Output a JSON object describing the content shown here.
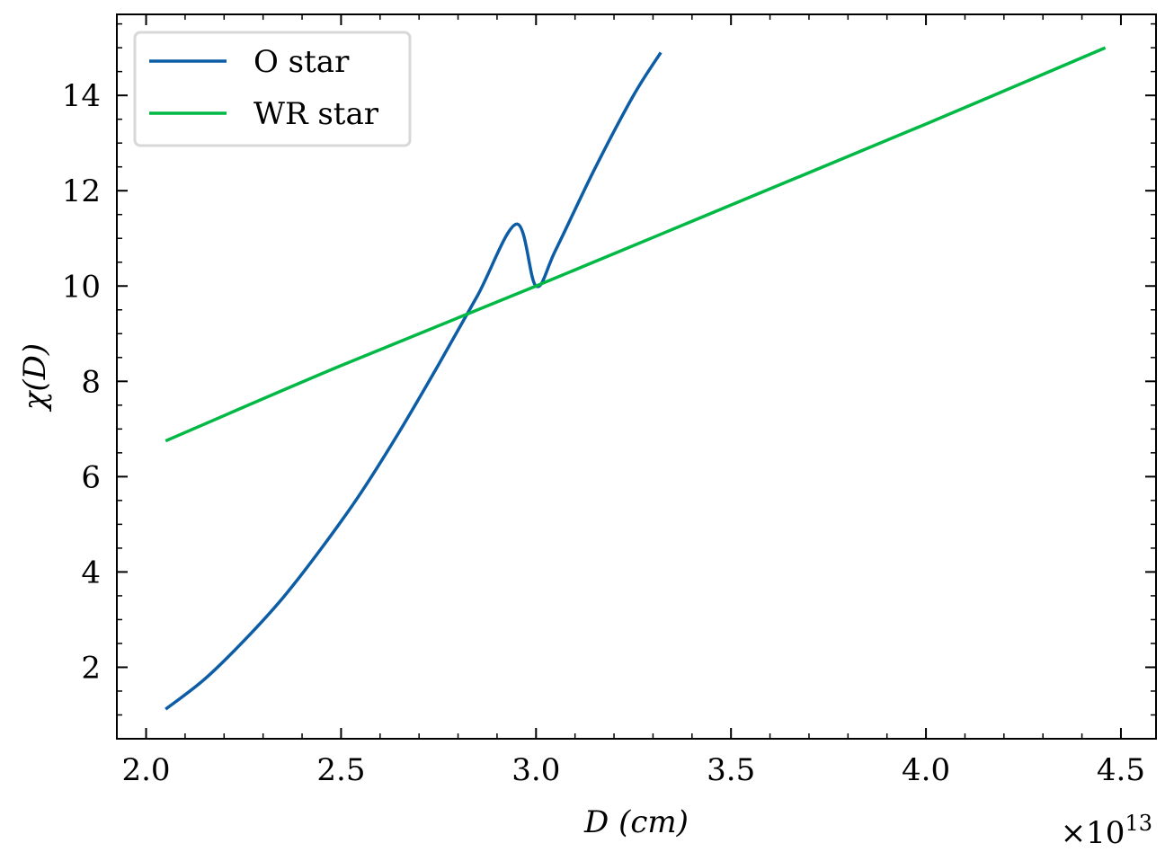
{
  "chart_data": {
    "type": "line",
    "xlabel": "D (cm)",
    "ylabel": "χ(D)",
    "x_offset_label": "×10",
    "x_offset_exponent": "13",
    "xlim": [
      1.925,
      4.59
    ],
    "ylim": [
      0.5,
      15.7
    ],
    "x_ticks": [
      2.0,
      2.5,
      3.0,
      3.5,
      4.0,
      4.5
    ],
    "x_tick_labels": [
      "2.0",
      "2.5",
      "3.0",
      "3.5",
      "4.0",
      "4.5"
    ],
    "x_minor_step": 0.1,
    "y_ticks": [
      2,
      4,
      6,
      8,
      10,
      12,
      14
    ],
    "y_tick_labels": [
      "2",
      "4",
      "6",
      "8",
      "10",
      "12",
      "14"
    ],
    "y_minor_step": 0.5,
    "grid": false,
    "legend_position": "top-left",
    "series": [
      {
        "name": "O star",
        "color": "#0c5da5",
        "x": [
          2.05,
          2.15,
          2.25,
          2.35,
          2.45,
          2.55,
          2.65,
          2.75,
          2.85,
          2.95,
          3.0,
          3.05,
          3.15,
          3.25,
          3.32
        ],
        "y": [
          1.12,
          1.75,
          2.55,
          3.45,
          4.5,
          5.65,
          6.95,
          8.35,
          9.8,
          11.3,
          10.0,
          10.75,
          12.45,
          14.0,
          14.9
        ]
      },
      {
        "name": "WR star",
        "color": "#00b945",
        "x": [
          2.05,
          2.5,
          3.0,
          3.5,
          4.0,
          4.46
        ],
        "y": [
          6.75,
          8.33,
          10.0,
          11.7,
          13.4,
          15.0
        ]
      }
    ]
  }
}
